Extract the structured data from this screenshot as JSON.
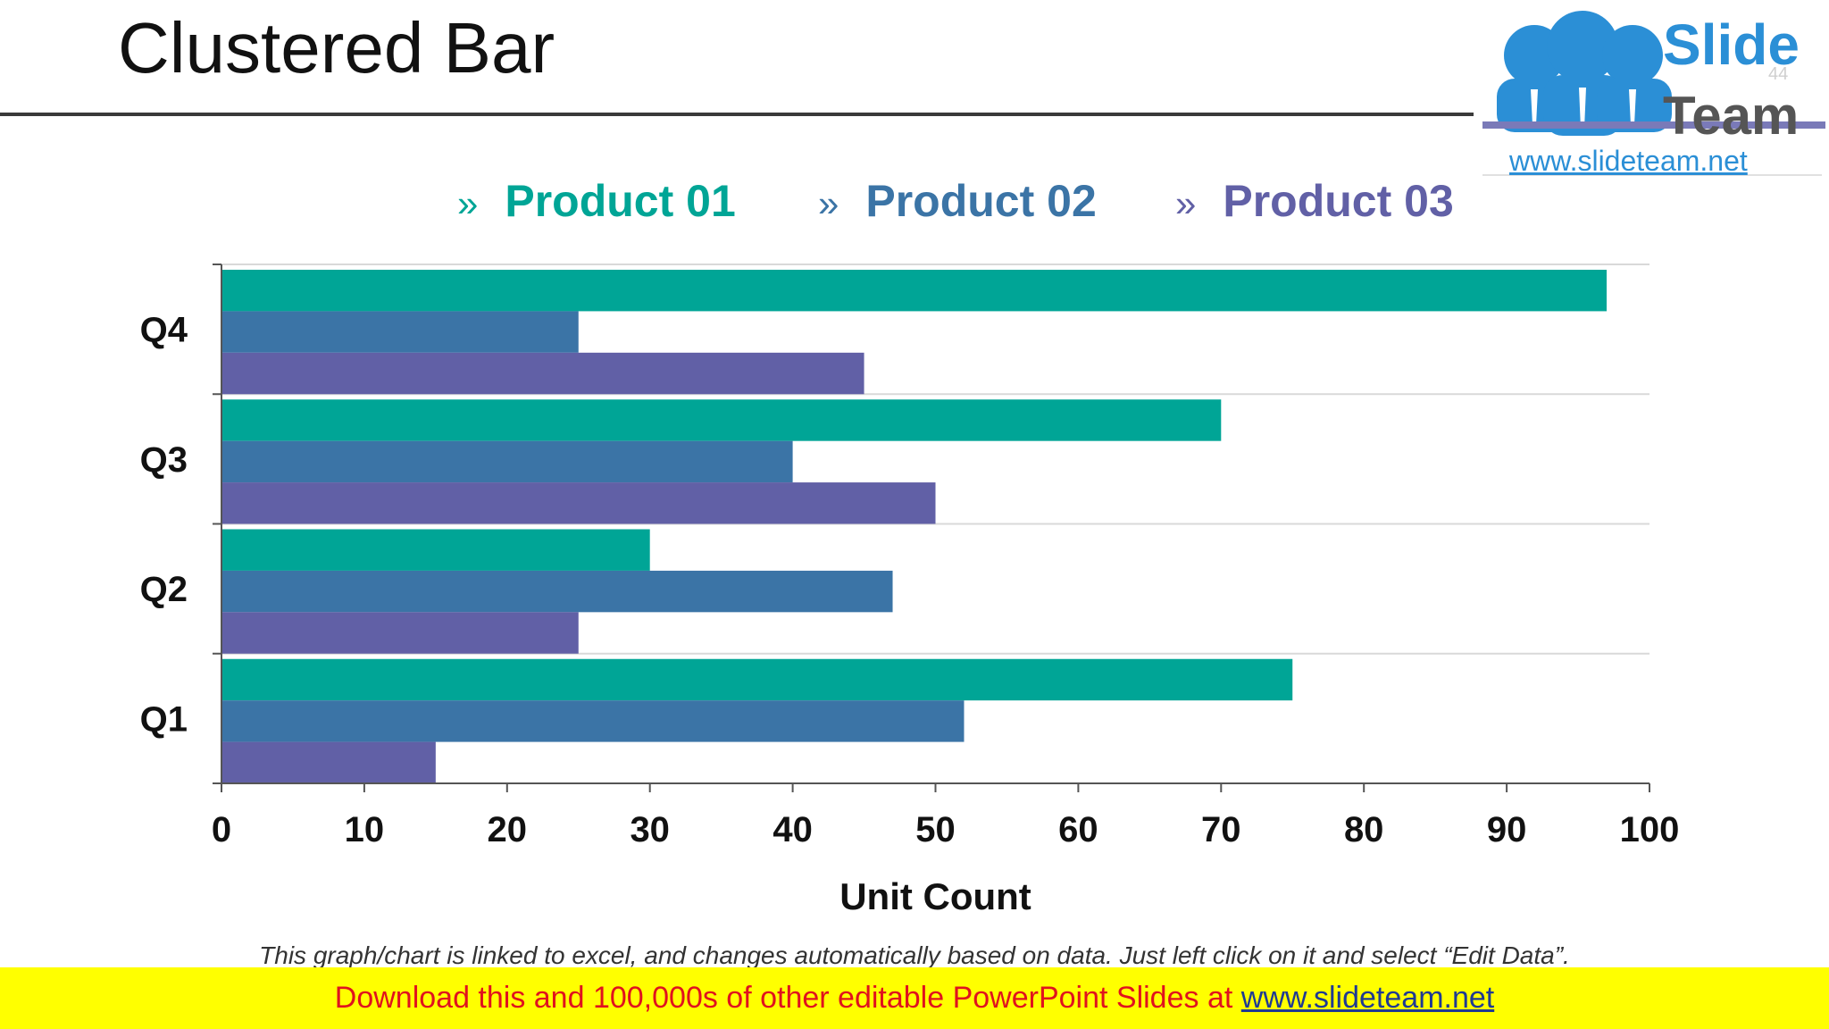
{
  "slide": {
    "title": "Clustered Bar",
    "slide_number": "44",
    "footnote": "This graph/chart is linked to excel, and changes automatically based on data. Just left click on it and select “Edit Data”.",
    "banner_text": "Download this and 100,000s of other editable PowerPoint Slides at ",
    "banner_link": "www.slideteam.net"
  },
  "logo": {
    "word1": "Slide",
    "word2": "Team",
    "url": "www.slideteam.net",
    "icon": "people-group-icon"
  },
  "legend": {
    "marker": "»",
    "items": [
      "Product 01",
      "Product 02",
      "Product 03"
    ]
  },
  "colors": {
    "product_01": "#00a596",
    "product_02": "#3b74a6",
    "product_03": "#6160a6",
    "grid": "#d9d9d9",
    "axis": "#555555"
  },
  "chart_data": {
    "type": "bar",
    "orientation": "horizontal",
    "categories": [
      "Q1",
      "Q2",
      "Q3",
      "Q4"
    ],
    "series": [
      {
        "name": "Product 01",
        "values": [
          75,
          30,
          70,
          97
        ]
      },
      {
        "name": "Product 02",
        "values": [
          52,
          47,
          40,
          25
        ]
      },
      {
        "name": "Product 03",
        "values": [
          15,
          25,
          50,
          45
        ]
      }
    ],
    "xlabel": "Unit Count",
    "ylabel": "",
    "xlim": [
      0,
      100
    ],
    "xticks": [
      0,
      10,
      20,
      30,
      40,
      50,
      60,
      70,
      80,
      90,
      100
    ],
    "grid": true,
    "legend_position": "top"
  }
}
